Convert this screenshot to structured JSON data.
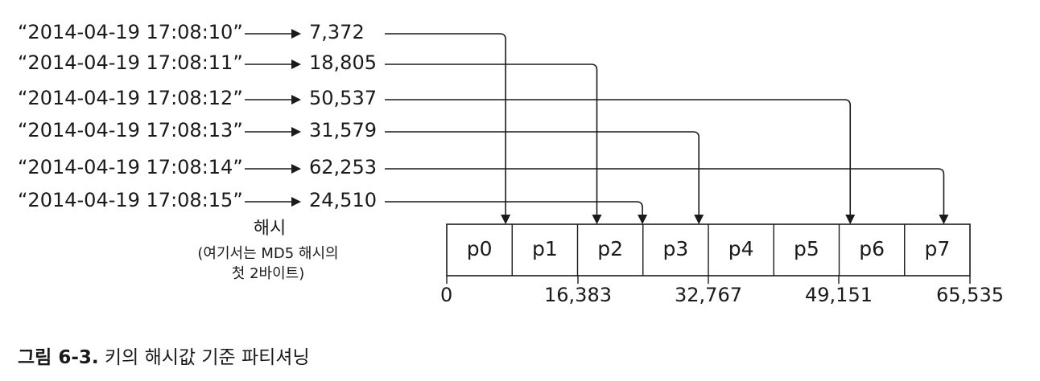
{
  "keys": [
    {
      "key": "“2014-04-19 17:08:10”",
      "hash": "7,372",
      "partition_index": 0,
      "value": 7372
    },
    {
      "key": "“2014-04-19 17:08:11”",
      "hash": "18,805",
      "partition_index": 2,
      "value": 18805
    },
    {
      "key": "“2014-04-19 17:08:12”",
      "hash": "50,537",
      "partition_index": 6,
      "value": 50537
    },
    {
      "key": "“2014-04-19 17:08:13”",
      "hash": "31,579",
      "partition_index": 3,
      "value": 31579
    },
    {
      "key": "“2014-04-19 17:08:14”",
      "hash": "62,253",
      "partition_index": 7,
      "value": 62253
    },
    {
      "key": "“2014-04-19 17:08:15”",
      "hash": "24,510",
      "partition_index": 2,
      "value": 24510
    }
  ],
  "hash_label": "해시",
  "hash_note_line1": "(여기서는 MD5 해시의",
  "hash_note_line2": "첫 2바이트)",
  "partitions": [
    "p0",
    "p1",
    "p2",
    "p3",
    "p4",
    "p5",
    "p6",
    "p7"
  ],
  "axis_ticks": [
    "0",
    "16,383",
    "32,767",
    "49,151",
    "65,535"
  ],
  "caption_prefix": "그림 6-3.",
  "caption_text": " 키의 해시값 기준 파티셔닝"
}
